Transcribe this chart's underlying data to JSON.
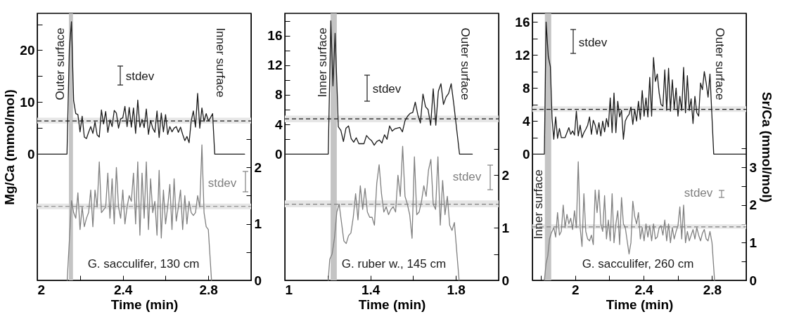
{
  "chart_data": [
    {
      "type": "line",
      "xlabel": "Time (min)",
      "ylabel": "Mg/Ca (mmol/mol)",
      "line_style": "solid",
      "xlim": [
        2,
        3
      ],
      "xticks": [
        2,
        {
          "value": 2.2,
          "label": null
        },
        2.4,
        {
          "value": 2.6,
          "label": null
        },
        2.8
      ],
      "ylim": [
        -24.3,
        27.1
      ],
      "yticks": [
        0,
        {
          "value": 5,
          "label": null
        },
        10,
        {
          "value": 15,
          "label": null
        },
        20,
        {
          "value": 25,
          "label": null
        }
      ],
      "y2lim": [
        0,
        4.73
      ],
      "y2ticks": [
        0,
        {
          "value": 0.5,
          "label": null
        },
        1,
        {
          "value": 1.5,
          "label": null
        },
        2,
        {
          "value": 2.5,
          "label": null
        }
      ],
      "series": [
        {
          "color": "#1a1a1a",
          "x": [
            2,
            2.139,
            2.15,
            2.16,
            2.17,
            2.18,
            2.19,
            2.2,
            2.21,
            2.22,
            2.23,
            2.24,
            2.25,
            2.26,
            2.27,
            2.28,
            2.29,
            2.3,
            2.31,
            2.32,
            2.33,
            2.34,
            2.35,
            2.36,
            2.37,
            2.38,
            2.39,
            2.4,
            2.41,
            2.42,
            2.43,
            2.44,
            2.45,
            2.46,
            2.47,
            2.48,
            2.49,
            2.5,
            2.51,
            2.52,
            2.53,
            2.54,
            2.55,
            2.56,
            2.57,
            2.58,
            2.59,
            2.6,
            2.61,
            2.62,
            2.63,
            2.64,
            2.65,
            2.66,
            2.67,
            2.68,
            2.69,
            2.7,
            2.71,
            2.72,
            2.73,
            2.74,
            2.75,
            2.76,
            2.77,
            2.78,
            2.79,
            2.8,
            2.81,
            2.82,
            2.83,
            2.97
          ],
          "values": [
            0,
            0,
            20.3,
            25.5,
            10.3,
            7.8,
            7.6,
            4.3,
            7.3,
            3.3,
            3.0,
            4.2,
            5.3,
            4.0,
            6.2,
            3.7,
            3.3,
            8.5,
            5.8,
            8.2,
            4.2,
            6.6,
            5.3,
            8.4,
            7.9,
            5.0,
            6.8,
            7.0,
            9.2,
            5.3,
            9.0,
            5.2,
            8.9,
            4.0,
            10.4,
            5.2,
            6.7,
            5.1,
            8.7,
            3.8,
            6.5,
            5.0,
            4.2,
            8.3,
            3.2,
            7.9,
            4.3,
            7.6,
            3.8,
            5.3,
            4.3,
            5.0,
            5.3,
            4.2,
            5.2,
            3.8,
            2.6,
            3.4,
            2.2,
            6.4,
            8.3,
            5.2,
            11.7,
            5.0,
            8.9,
            6.3,
            7.8,
            6.4,
            7.0,
            7.8,
            0,
            0
          ]
        },
        {
          "color": "#808080",
          "axis": "y2",
          "x": [
            2.14,
            2.15,
            2.16,
            2.17,
            2.18,
            2.19,
            2.2,
            2.21,
            2.22,
            2.23,
            2.24,
            2.25,
            2.26,
            2.27,
            2.28,
            2.29,
            2.3,
            2.31,
            2.32,
            2.33,
            2.34,
            2.35,
            2.36,
            2.37,
            2.38,
            2.39,
            2.4,
            2.41,
            2.42,
            2.43,
            2.44,
            2.45,
            2.46,
            2.47,
            2.48,
            2.49,
            2.5,
            2.51,
            2.52,
            2.53,
            2.54,
            2.55,
            2.56,
            2.57,
            2.58,
            2.59,
            2.6,
            2.61,
            2.62,
            2.63,
            2.64,
            2.65,
            2.66,
            2.67,
            2.68,
            2.69,
            2.7,
            2.71,
            2.72,
            2.73,
            2.74,
            2.75,
            2.76,
            2.77,
            2.78,
            2.79,
            2.8,
            2.815
          ],
          "values": [
            0,
            0.7,
            1.41,
            1.2,
            1.1,
            1.55,
            0.9,
            1.3,
            0.95,
            1.1,
            1.2,
            1.6,
            0.95,
            1.6,
            1.3,
            2.1,
            1.2,
            1.25,
            1.3,
            1.9,
            1.1,
            1.8,
            1.0,
            2.0,
            1.3,
            1.1,
            1.6,
            1.0,
            1.3,
            1.5,
            1.4,
            1.9,
            1.0,
            2.1,
            0.8,
            1.9,
            1.1,
            2.1,
            0.9,
            1.8,
            1.2,
            1.4,
            0.8,
            1.95,
            0.75,
            1.6,
            1.0,
            1.3,
            1.7,
            0.9,
            1.8,
            1.05,
            1.3,
            1.6,
            0.9,
            1.5,
            1.0,
            1.4,
            1.2,
            1.15,
            1.2,
            1.5,
            1.3,
            2.4,
            1.2,
            0.95,
            0.9,
            0
          ]
        }
      ],
      "ref_lines": [
        {
          "axis": "y",
          "value": 6.4,
          "color": "#1a1a1a",
          "line_style": "dashed"
        },
        {
          "axis": "y2",
          "value": 1.31,
          "color": "#808080",
          "line_style": "dashed"
        }
      ],
      "bands": [
        {
          "axis": "y",
          "from": 5.9,
          "to": 7.0,
          "color": "#e6e6e6"
        },
        {
          "axis": "y2",
          "from": 1.26,
          "to": 1.36,
          "color": "#e6e6e6"
        },
        {
          "axis": "x",
          "from": 2.148,
          "to": 2.167,
          "color": "#c4c4c4"
        }
      ],
      "annotations": [
        "Outer surface",
        "Inner surface",
        "stdev",
        "stdev",
        "G. sacculifer, 130 cm"
      ]
    },
    {
      "type": "line",
      "xlabel": "Time (min)",
      "line_style": "solid",
      "xlim": [
        1,
        2
      ],
      "xticks": [
        1,
        {
          "value": 1.2,
          "label": null
        },
        1.4,
        {
          "value": 1.6,
          "label": null
        },
        1.8
      ],
      "ylim": [
        -17.05,
        19
      ],
      "yticks": [
        0,
        {
          "value": 2,
          "label": null
        },
        4,
        {
          "value": 6,
          "label": null
        },
        8,
        {
          "value": 10,
          "label": null
        },
        12,
        {
          "value": 14,
          "label": null
        },
        16,
        {
          "value": 18,
          "label": null
        }
      ],
      "y2lim": [
        0,
        5.08
      ],
      "y2ticks": [
        0,
        {
          "value": 0.5,
          "label": null
        },
        1,
        {
          "value": 1.5,
          "label": null
        },
        2,
        {
          "value": 2.5,
          "label": null
        }
      ],
      "series": [
        {
          "color": "#1a1a1a",
          "x": [
            1,
            1.203,
            1.215,
            1.225,
            1.235,
            1.245,
            1.25,
            1.262,
            1.274,
            1.286,
            1.298,
            1.31,
            1.322,
            1.334,
            1.346,
            1.358,
            1.37,
            1.382,
            1.394,
            1.406,
            1.418,
            1.43,
            1.442,
            1.454,
            1.466,
            1.478,
            1.49,
            1.502,
            1.514,
            1.526,
            1.538,
            1.55,
            1.562,
            1.574,
            1.586,
            1.598,
            1.61,
            1.622,
            1.634,
            1.646,
            1.658,
            1.67,
            1.682,
            1.694,
            1.706,
            1.718,
            1.73,
            1.742,
            1.754,
            1.766,
            1.778,
            1.79,
            1.817,
            1.877
          ],
          "values": [
            0,
            0,
            18.0,
            9.2,
            16.3,
            8.2,
            3.7,
            3.2,
            1.7,
            3.5,
            3.8,
            2.1,
            1.6,
            2.2,
            1.4,
            1.4,
            1.4,
            2.5,
            2.1,
            1.8,
            1.2,
            1.7,
            1.9,
            1.5,
            2.6,
            2.0,
            3.8,
            3.1,
            3.4,
            3.5,
            3.6,
            3.0,
            4.5,
            5.1,
            5.5,
            5.6,
            7.0,
            5.3,
            4.2,
            8.1,
            6.4,
            6.0,
            3.9,
            8.8,
            3.9,
            8.5,
            9.5,
            6.7,
            7.7,
            8.2,
            9.5,
            6.8,
            0,
            0
          ]
        },
        {
          "color": "#808080",
          "axis": "y2",
          "x": [
            1.203,
            1.21,
            1.221,
            1.232,
            1.243,
            1.254,
            1.265,
            1.276,
            1.287,
            1.298,
            1.309,
            1.32,
            1.331,
            1.342,
            1.353,
            1.364,
            1.375,
            1.386,
            1.397,
            1.408,
            1.419,
            1.43,
            1.441,
            1.452,
            1.463,
            1.474,
            1.485,
            1.496,
            1.507,
            1.518,
            1.529,
            1.54,
            1.551,
            1.562,
            1.573,
            1.584,
            1.595,
            1.606,
            1.617,
            1.628,
            1.639,
            1.65,
            1.661,
            1.672,
            1.683,
            1.694,
            1.705,
            1.716,
            1.727,
            1.738,
            1.749,
            1.76,
            1.771,
            1.782,
            1.793,
            1.815
          ],
          "values": [
            0,
            0.4,
            0.5,
            0.8,
            1.3,
            1.45,
            1.1,
            0.75,
            0.7,
            0.85,
            0.9,
            1.2,
            1.65,
            1.15,
            1.8,
            1.35,
            1.75,
            1.3,
            1.2,
            1.2,
            1.05,
            1.85,
            2.2,
            1.65,
            1.3,
            1.4,
            1.25,
            1.35,
            1.4,
            1.3,
            2.0,
            1.6,
            2.55,
            1.6,
            1.45,
            1.25,
            0.8,
            2.35,
            1.25,
            1.3,
            1.5,
            1.8,
            1.6,
            2.1,
            2.3,
            1.45,
            1.35,
            2.35,
            1.05,
            1.9,
            1.25,
            1.6,
            1.05,
            0.95,
            1.1,
            0
          ]
        }
      ],
      "ref_lines": [
        {
          "axis": "y",
          "value": 4.75,
          "color": "#1a1a1a",
          "line_style": "dashed"
        },
        {
          "axis": "y2",
          "value": 1.45,
          "color": "#808080",
          "line_style": "dashed"
        }
      ],
      "bands": [
        {
          "axis": "y",
          "from": 4.3,
          "to": 5.2,
          "color": "#e6e6e6"
        },
        {
          "axis": "y2",
          "from": 1.39,
          "to": 1.52,
          "color": "#e6e6e6"
        },
        {
          "axis": "x",
          "from": 1.214,
          "to": 1.243,
          "color": "#c4c4c4"
        }
      ],
      "annotations": [
        "Inner surface",
        "Outer surface",
        "stdev",
        "stdev",
        "G. ruber w., 145 cm"
      ]
    },
    {
      "type": "line",
      "xlabel": "Time (min)",
      "y2label": "Sr/Ca (mmol/mol)",
      "line_style": "solid",
      "xlim": [
        1.75,
        3
      ],
      "xticks": [
        {
          "value": 1.8,
          "label": null
        },
        2,
        {
          "value": 2.2,
          "label": null
        },
        2.4,
        {
          "value": 2.6,
          "label": null
        },
        2.8
      ],
      "ylim": [
        -15.3,
        17.05
      ],
      "yticks": [
        0,
        {
          "value": 2,
          "label": null
        },
        4,
        {
          "value": 6,
          "label": null
        },
        8,
        {
          "value": 10,
          "label": null
        },
        12,
        {
          "value": 14,
          "label": null
        },
        16
      ],
      "y2lim": [
        0,
        7.09
      ],
      "y2ticks": [
        0,
        {
          "value": 0.5,
          "label": null
        },
        1,
        {
          "value": 1.5,
          "label": null
        },
        2,
        {
          "value": 2.5,
          "label": null
        },
        3,
        {
          "value": 3.5,
          "label": null
        }
      ],
      "series": [
        {
          "color": "#1a1a1a",
          "x": [
            1.75,
            1.82,
            1.83,
            1.843,
            1.855,
            1.865,
            1.875,
            1.886,
            1.897,
            1.908,
            1.919,
            1.93,
            1.941,
            1.952,
            1.963,
            1.974,
            1.985,
            1.996,
            2.007,
            2.018,
            2.029,
            2.04,
            2.051,
            2.062,
            2.073,
            2.084,
            2.095,
            2.106,
            2.117,
            2.128,
            2.139,
            2.15,
            2.161,
            2.172,
            2.183,
            2.194,
            2.205,
            2.216,
            2.227,
            2.238,
            2.249,
            2.26,
            2.271,
            2.282,
            2.293,
            2.304,
            2.315,
            2.326,
            2.337,
            2.348,
            2.359,
            2.37,
            2.381,
            2.392,
            2.403,
            2.414,
            2.425,
            2.436,
            2.447,
            2.458,
            2.469,
            2.48,
            2.491,
            2.502,
            2.513,
            2.524,
            2.535,
            2.546,
            2.557,
            2.568,
            2.579,
            2.59,
            2.601,
            2.612,
            2.623,
            2.634,
            2.645,
            2.656,
            2.667,
            2.678,
            2.689,
            2.7,
            2.711,
            2.722,
            2.733,
            2.744,
            2.755,
            2.766,
            2.777,
            2.788,
            2.81,
            3
          ],
          "values": [
            0,
            0,
            16.0,
            11.8,
            10.6,
            4.3,
            1.8,
            4.5,
            1.9,
            3.1,
            2.0,
            2.0,
            2.0,
            2.6,
            3.2,
            2.4,
            2.8,
            2.3,
            5.2,
            2.2,
            3.5,
            2.0,
            2.6,
            3.0,
            3.5,
            4.5,
            2.4,
            4.1,
            3.5,
            2.4,
            3.8,
            2.2,
            4.0,
            2.7,
            4.3,
            3.3,
            6.8,
            2.6,
            7.4,
            2.6,
            6.4,
            4.5,
            5.3,
            1.8,
            4.0,
            4.5,
            4.8,
            5.7,
            3.6,
            5.4,
            4.0,
            6.4,
            4.2,
            7.7,
            4.6,
            6.8,
            4.5,
            9.3,
            4.6,
            11.7,
            8.8,
            9.7,
            7.4,
            6.0,
            5.8,
            10.2,
            5.3,
            10.4,
            5.2,
            9.0,
            5.5,
            8.0,
            4.6,
            7.0,
            5.3,
            10.5,
            5.0,
            9.5,
            5.3,
            6.7,
            3.7,
            7.0,
            5.0,
            4.6,
            8.6,
            7.8,
            10.0,
            8.6,
            6.9,
            9.7,
            0,
            0
          ]
        },
        {
          "color": "#808080",
          "axis": "y2",
          "x": [
            1.82,
            1.83,
            1.84,
            1.85,
            1.86,
            1.875,
            1.886,
            1.897,
            1.908,
            1.919,
            1.93,
            1.941,
            1.952,
            1.963,
            1.974,
            1.985,
            1.996,
            2.007,
            2.018,
            2.029,
            2.04,
            2.051,
            2.062,
            2.073,
            2.084,
            2.095,
            2.106,
            2.117,
            2.128,
            2.139,
            2.15,
            2.161,
            2.172,
            2.183,
            2.194,
            2.205,
            2.216,
            2.227,
            2.238,
            2.249,
            2.26,
            2.271,
            2.282,
            2.293,
            2.304,
            2.315,
            2.326,
            2.337,
            2.348,
            2.359,
            2.37,
            2.381,
            2.392,
            2.403,
            2.414,
            2.425,
            2.436,
            2.447,
            2.458,
            2.469,
            2.48,
            2.491,
            2.502,
            2.513,
            2.524,
            2.535,
            2.546,
            2.557,
            2.568,
            2.579,
            2.59,
            2.601,
            2.612,
            2.623,
            2.634,
            2.645,
            2.656,
            2.667,
            2.678,
            2.689,
            2.7,
            2.711,
            2.722,
            2.733,
            2.744,
            2.755,
            2.766,
            2.777,
            2.788,
            2.8,
            2.815
          ],
          "values": [
            0,
            0.45,
            0.65,
            1.1,
            1.25,
            1.4,
            1.15,
            1.8,
            1.2,
            1.3,
            2.0,
            1.4,
            1.75,
            1.5,
            1.65,
            1.35,
            1.85,
            1.4,
            3.15,
            1.4,
            0.9,
            2.3,
            1.3,
            1.1,
            1.05,
            1.2,
            0.95,
            2.4,
            1.8,
            2.4,
            1.5,
            1.3,
            2.25,
            1.1,
            1.6,
            1.05,
            2.3,
            1.0,
            1.5,
            1.85,
            0.95,
            2.2,
            1.5,
            1.4,
            1.05,
            0.7,
            1.0,
            2.1,
            1.7,
            1.5,
            1.8,
            1.1,
            1.4,
            1.05,
            1.5,
            1.15,
            1.45,
            1.05,
            1.5,
            1.1,
            1.15,
            1.4,
            1.45,
            1.2,
            1.6,
            1.05,
            1.5,
            1.0,
            1.4,
            1.1,
            1.3,
            1.45,
            1.95,
            1.1,
            2.0,
            1.0,
            1.3,
            1.05,
            1.2,
            1.35,
            1.1,
            1.4,
            1.2,
            1.05,
            1.25,
            1.35,
            1.1,
            1.05,
            1.3,
            1.0,
            0
          ]
        }
      ],
      "ref_lines": [
        {
          "axis": "y",
          "value": 5.42,
          "color": "#1a1a1a",
          "line_style": "dashed"
        },
        {
          "axis": "y2",
          "value": 1.42,
          "color": "#808080",
          "line_style": "dashed"
        }
      ],
      "bands": [
        {
          "axis": "y",
          "from": 5.1,
          "to": 5.8,
          "color": "#e6e6e6"
        },
        {
          "axis": "y2",
          "from": 1.37,
          "to": 1.49,
          "color": "#e6e6e6"
        },
        {
          "axis": "x",
          "from": 1.823,
          "to": 1.86,
          "color": "#c4c4c4"
        }
      ],
      "annotations": [
        "Outer surface",
        "Inner surface",
        "stdev",
        "stdev",
        "G. sacculifer, 260 cm"
      ]
    }
  ]
}
